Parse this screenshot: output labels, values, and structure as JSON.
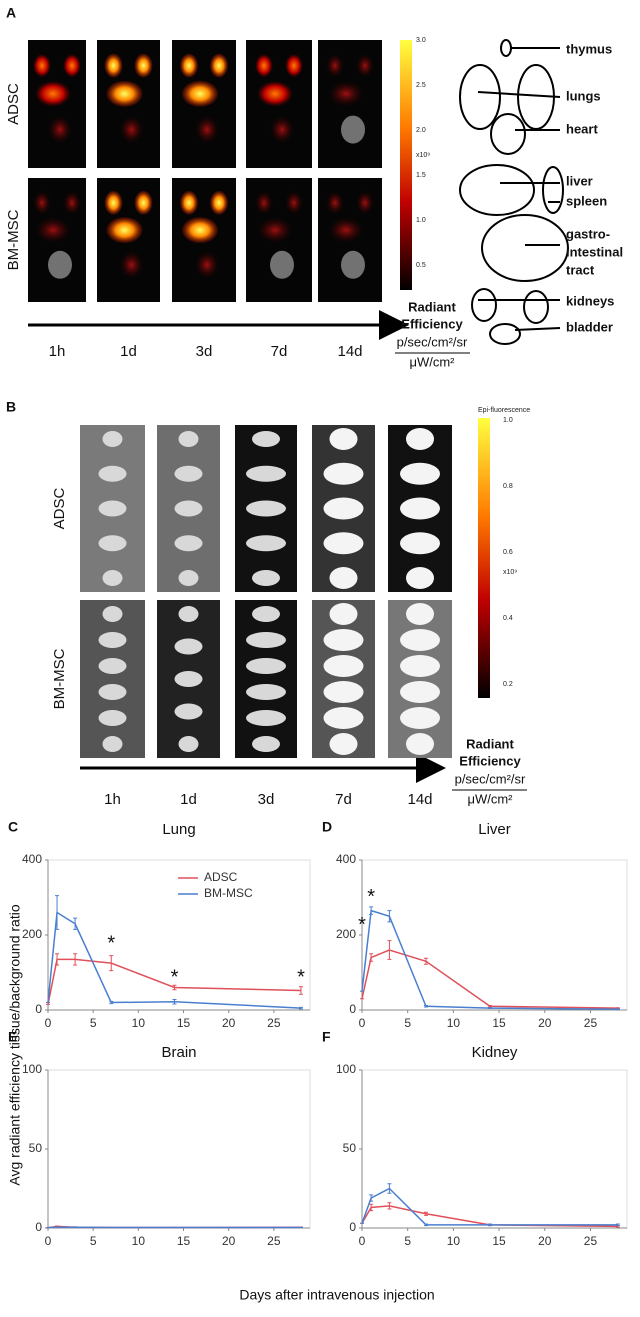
{
  "panel_a": {
    "label": "A",
    "rows": [
      "ADSC",
      "BM-MSC"
    ],
    "times": [
      "1h",
      "1d",
      "3d",
      "7d",
      "14d"
    ],
    "colorbar_ticks": [
      "3.0",
      "2.5",
      "2.0",
      "1.5",
      "1.0",
      "0.5"
    ],
    "colorbar_unit": "x10⁹",
    "radiant": [
      "Radiant",
      "Efficiency",
      "p/sec/cm²/sr",
      "μW/cm²"
    ],
    "organs": [
      "thymus",
      "lungs",
      "heart",
      "liver",
      "spleen",
      "gastro-",
      "intestinal",
      "tract",
      "kidneys",
      "bladder"
    ]
  },
  "panel_b": {
    "label": "B",
    "rows": [
      "ADSC",
      "BM-MSC"
    ],
    "times": [
      "1h",
      "1d",
      "3d",
      "7d",
      "14d"
    ],
    "colorbar_title": "Epi-fluorescence",
    "colorbar_ticks": [
      "1.0",
      "0.8",
      "0.6",
      "0.4",
      "0.2"
    ],
    "colorbar_unit": "x10⁹",
    "radiant": [
      "Radiant",
      "Efficiency",
      "p/sec/cm²/sr",
      "μW/cm²"
    ]
  },
  "y_label": "Avg radiant efficiency tissue/background ratio",
  "x_label": "Days after intravenous injection",
  "chart_data": [
    {
      "type": "line",
      "panel": "C",
      "title": "Lung",
      "legend": true,
      "x": [
        0,
        1,
        3,
        7,
        14,
        28
      ],
      "xlim": [
        0,
        29
      ],
      "xticks": [
        0,
        5,
        10,
        15,
        20,
        25
      ],
      "ylim": [
        0,
        400
      ],
      "yticks": [
        0,
        200,
        400
      ],
      "series": [
        {
          "name": "ADSC",
          "color": "#e0505a",
          "values": [
            15,
            135,
            135,
            125,
            60,
            52
          ],
          "errors": [
            0,
            15,
            15,
            20,
            6,
            10
          ]
        },
        {
          "name": "BM-MSC",
          "color": "#4a7fd0",
          "values": [
            20,
            260,
            230,
            20,
            22,
            5
          ],
          "errors": [
            0,
            45,
            15,
            3,
            6,
            2
          ]
        }
      ],
      "annotations": [
        {
          "text": "*",
          "x": 7,
          "y": 175
        },
        {
          "text": "*",
          "x": 14,
          "y": 85
        },
        {
          "text": "*",
          "x": 28,
          "y": 85
        }
      ]
    },
    {
      "type": "line",
      "panel": "D",
      "title": "Liver",
      "legend": false,
      "x": [
        0,
        1,
        3,
        7,
        14,
        28
      ],
      "xlim": [
        0,
        29
      ],
      "xticks": [
        0,
        5,
        10,
        15,
        20,
        25
      ],
      "ylim": [
        0,
        400
      ],
      "yticks": [
        0,
        200,
        400
      ],
      "series": [
        {
          "name": "ADSC",
          "color": "#e0505a",
          "values": [
            30,
            140,
            160,
            130,
            10,
            5
          ],
          "errors": [
            0,
            10,
            25,
            8,
            2,
            1
          ]
        },
        {
          "name": "BM-MSC",
          "color": "#4a7fd0",
          "values": [
            50,
            265,
            250,
            10,
            5,
            2
          ],
          "errors": [
            0,
            10,
            15,
            2,
            1,
            1
          ]
        }
      ],
      "annotations": [
        {
          "text": "*",
          "x": 0,
          "y": 225
        },
        {
          "text": "*",
          "x": 1,
          "y": 300
        }
      ]
    },
    {
      "type": "line",
      "panel": "E",
      "title": "Brain",
      "legend": false,
      "x": [
        0,
        1,
        3,
        7,
        14,
        28
      ],
      "xlim": [
        0,
        29
      ],
      "xticks": [
        0,
        5,
        10,
        15,
        20,
        25
      ],
      "ylim": [
        0,
        100
      ],
      "yticks": [
        0,
        50,
        100
      ],
      "series": [
        {
          "name": "ADSC",
          "color": "#e0505a",
          "values": [
            0.2,
            1,
            0.5,
            0.3,
            0.3,
            0.5
          ],
          "errors": [
            0,
            0.3,
            0.2,
            0.1,
            0.1,
            0.1
          ]
        },
        {
          "name": "BM-MSC",
          "color": "#4a7fd0",
          "values": [
            0.2,
            0.5,
            0.5,
            0.3,
            0.3,
            0.3
          ],
          "errors": [
            0,
            0.2,
            0.2,
            0.1,
            0.1,
            0.1
          ]
        }
      ],
      "annotations": []
    },
    {
      "type": "line",
      "panel": "F",
      "title": "Kidney",
      "legend": false,
      "x": [
        0,
        1,
        3,
        7,
        14,
        28
      ],
      "xlim": [
        0,
        29
      ],
      "xticks": [
        0,
        5,
        10,
        15,
        20,
        25
      ],
      "ylim": [
        0,
        100
      ],
      "yticks": [
        0,
        50,
        100
      ],
      "series": [
        {
          "name": "ADSC",
          "color": "#e0505a",
          "values": [
            3,
            13,
            14,
            9,
            2,
            1
          ],
          "errors": [
            0,
            2,
            2,
            1,
            0.5,
            0.5
          ]
        },
        {
          "name": "BM-MSC",
          "color": "#4a7fd0",
          "values": [
            3,
            19,
            25,
            2,
            2,
            2
          ],
          "errors": [
            0,
            2,
            3,
            0.5,
            0.5,
            0.5
          ]
        }
      ],
      "annotations": []
    }
  ]
}
